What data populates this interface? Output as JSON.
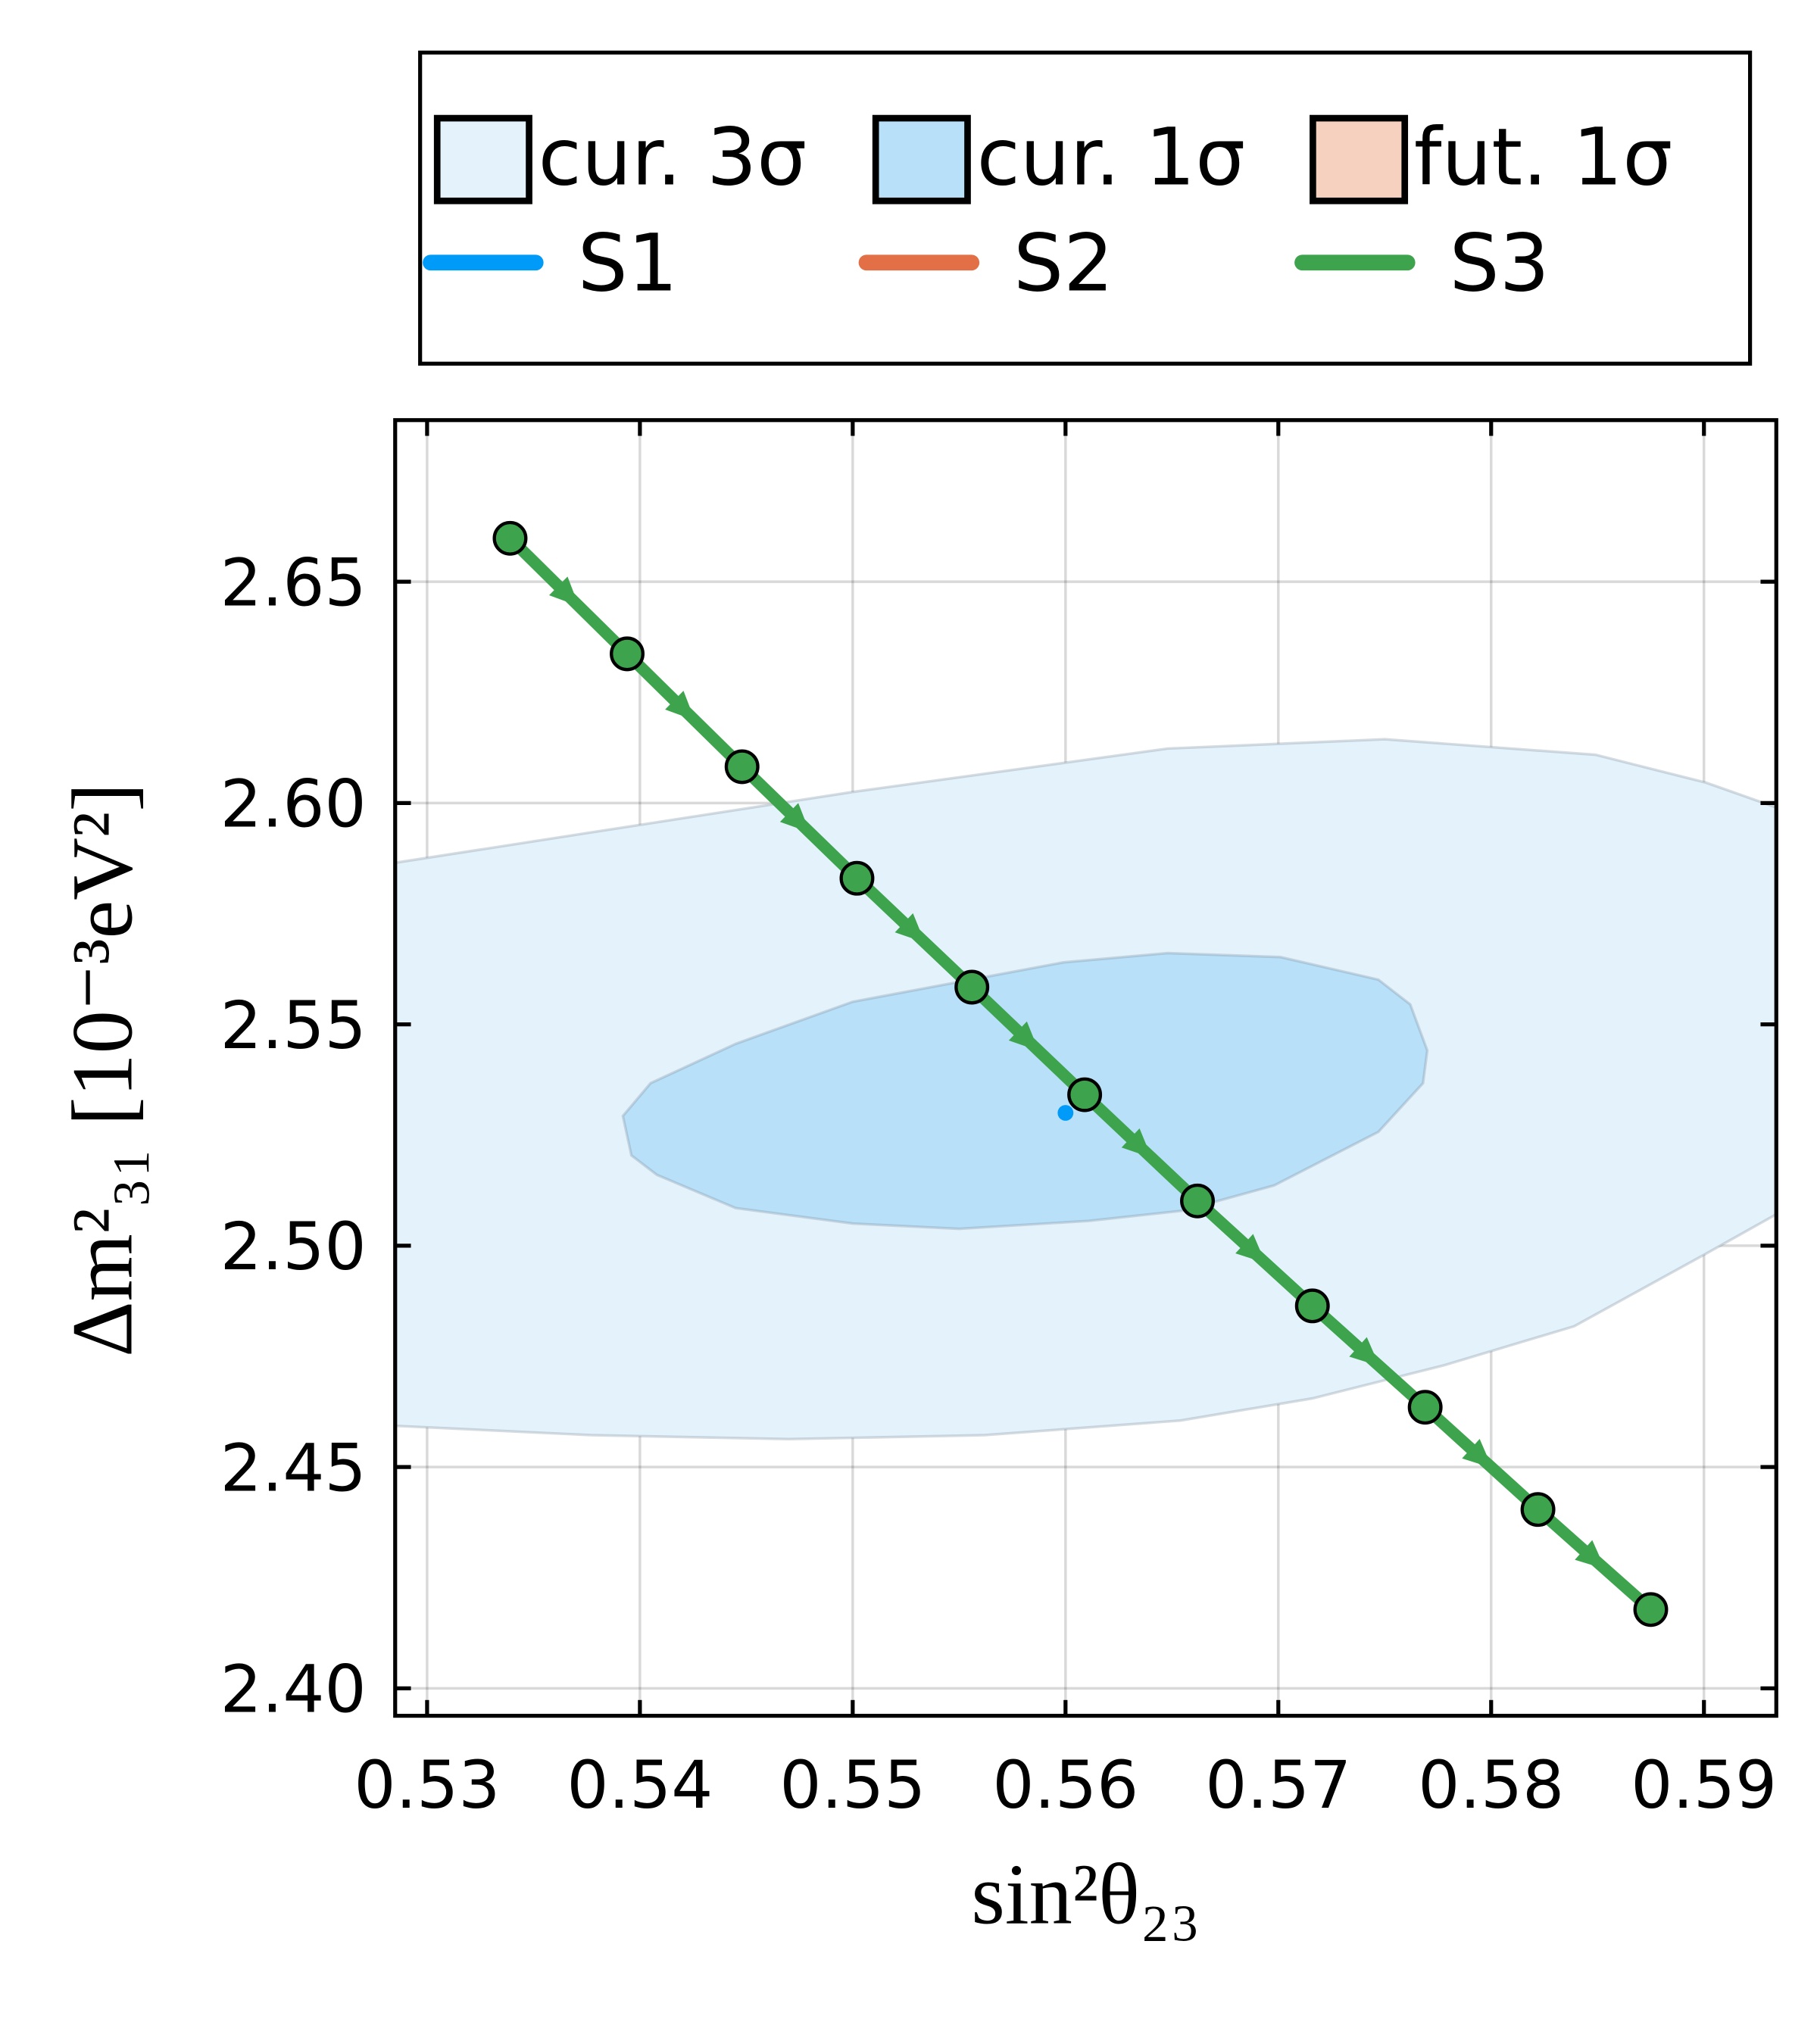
{
  "chart_data": {
    "type": "scatter",
    "xlabel": "sin²θ₂₃",
    "ylabel": "Δm²₃₁ [10⁻³eV²]",
    "xlim": [
      0.5285,
      0.5934
    ],
    "ylim": [
      2.3938,
      2.6865
    ],
    "xticks": [
      0.53,
      0.54,
      0.55,
      0.56,
      0.57,
      0.58,
      0.59
    ],
    "yticks": [
      {
        "value": 2.4,
        "label": "2.40"
      },
      2.45,
      {
        "value": 2.5,
        "label": "2.50"
      },
      2.55,
      {
        "value": 2.6,
        "label": "2.60"
      },
      2.65
    ],
    "grid": true,
    "legend": "top",
    "regions": [
      {
        "name": "cur. 3σ",
        "color": "#e4f2fc",
        "x": [
          0.5285,
          0.55,
          0.5648,
          0.575,
          0.5849,
          0.5901,
          0.5934,
          0.5934,
          0.5901,
          0.5839,
          0.5778,
          0.5716,
          0.5654,
          0.5562,
          0.547,
          0.5377,
          0.5285
        ],
        "y": [
          2.5865,
          2.6025,
          2.6123,
          2.6144,
          2.6109,
          2.6046,
          2.599,
          2.5071,
          2.4982,
          2.4818,
          2.473,
          2.4655,
          2.4605,
          2.4572,
          2.4563,
          2.4572,
          2.4593
        ]
      },
      {
        "name": "cur. 1σ",
        "color": "#b8e0f9",
        "x": [
          0.5392,
          0.5405,
          0.5445,
          0.55,
          0.5599,
          0.5648,
          0.5701,
          0.5747,
          0.5762,
          0.577,
          0.5768,
          0.5747,
          0.5698,
          0.5655,
          0.5611,
          0.555,
          0.55,
          0.5445,
          0.5408,
          0.5396
        ],
        "y": [
          2.5293,
          2.5367,
          2.5456,
          2.5551,
          2.564,
          2.5661,
          2.5652,
          2.5601,
          2.5545,
          2.5441,
          2.5367,
          2.5257,
          2.5136,
          2.5079,
          2.5056,
          2.5038,
          2.505,
          2.5085,
          2.516,
          2.5204
        ]
      },
      {
        "name": "fut. 1σ",
        "color": "#f7d1bf",
        "x": [],
        "y": []
      }
    ],
    "series": [
      {
        "name": "S1",
        "color": "#009af9",
        "x": [
          0.56
        ],
        "y": [
          2.53
        ]
      },
      {
        "name": "S2",
        "color": "#e26f46",
        "x": [],
        "y": []
      },
      {
        "name": "S3",
        "color": "#3da44d",
        "x": [
          0.5339,
          0.5394,
          0.5448,
          0.5502,
          0.5556,
          0.5609,
          0.5662,
          0.5716,
          0.5769,
          0.5822,
          0.5875
        ],
        "y": [
          2.6598,
          2.6337,
          2.6082,
          2.583,
          2.5584,
          2.5341,
          2.5101,
          2.4864,
          2.4635,
          2.4404,
          2.4178
        ]
      }
    ]
  }
}
